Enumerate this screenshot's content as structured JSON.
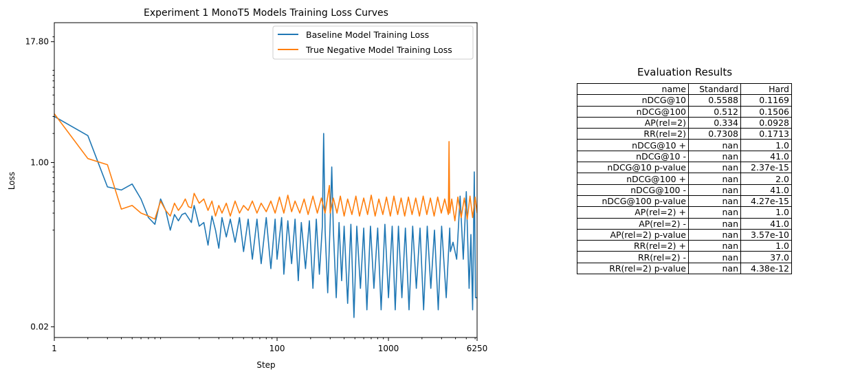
{
  "chart_data": {
    "type": "line",
    "title": "Experiment 1 MonoT5 Models Training Loss Curves",
    "xlabel": "Step",
    "ylabel": "Loss",
    "xscale": "log",
    "yscale": "log",
    "xlim": [
      1,
      6250
    ],
    "ylim": [
      0.0155,
      28
    ],
    "xticks": [
      1,
      100,
      1000,
      6250
    ],
    "xtick_labels": [
      "1",
      "100",
      "1000",
      "6250"
    ],
    "yticks": [
      0.02,
      1.0,
      17.8
    ],
    "ytick_labels": [
      "0.02",
      "1.00",
      "17.80"
    ],
    "grid": false,
    "legend_position": "top-right",
    "series": [
      {
        "name": "Baseline Model Training Loss",
        "color": "#1f77b4",
        "points": [
          [
            1,
            3.0
          ],
          [
            2,
            1.9
          ],
          [
            3,
            0.56
          ],
          [
            4,
            0.52
          ],
          [
            5,
            0.6
          ],
          [
            6,
            0.42
          ],
          [
            7,
            0.27
          ],
          [
            8,
            0.23
          ],
          [
            9,
            0.42
          ],
          [
            10,
            0.32
          ],
          [
            11,
            0.2
          ],
          [
            12,
            0.29
          ],
          [
            13,
            0.25
          ],
          [
            14,
            0.29
          ],
          [
            15,
            0.3
          ],
          [
            17,
            0.24
          ],
          [
            18,
            0.36
          ],
          [
            20,
            0.22
          ],
          [
            22,
            0.24
          ],
          [
            24,
            0.14
          ],
          [
            26,
            0.28
          ],
          [
            28,
            0.2
          ],
          [
            30,
            0.13
          ],
          [
            32,
            0.27
          ],
          [
            35,
            0.17
          ],
          [
            38,
            0.26
          ],
          [
            42,
            0.15
          ],
          [
            46,
            0.27
          ],
          [
            50,
            0.12
          ],
          [
            55,
            0.26
          ],
          [
            60,
            0.1
          ],
          [
            66,
            0.26
          ],
          [
            72,
            0.09
          ],
          [
            80,
            0.27
          ],
          [
            88,
            0.08
          ],
          [
            96,
            0.26
          ],
          [
            100,
            0.1
          ],
          [
            110,
            0.27
          ],
          [
            115,
            0.07
          ],
          [
            125,
            0.25
          ],
          [
            135,
            0.09
          ],
          [
            145,
            0.26
          ],
          [
            155,
            0.06
          ],
          [
            165,
            0.24
          ],
          [
            180,
            0.08
          ],
          [
            195,
            0.25
          ],
          [
            210,
            0.05
          ],
          [
            225,
            0.26
          ],
          [
            240,
            0.07
          ],
          [
            255,
            0.22
          ],
          [
            262,
            2.0
          ],
          [
            270,
            0.2
          ],
          [
            285,
            0.045
          ],
          [
            300,
            0.24
          ],
          [
            310,
            0.9
          ],
          [
            320,
            0.2
          ],
          [
            340,
            0.04
          ],
          [
            360,
            0.24
          ],
          [
            380,
            0.06
          ],
          [
            400,
            0.22
          ],
          [
            430,
            0.035
          ],
          [
            460,
            0.23
          ],
          [
            490,
            0.025
          ],
          [
            520,
            0.22
          ],
          [
            560,
            0.05
          ],
          [
            600,
            0.21
          ],
          [
            640,
            0.03
          ],
          [
            690,
            0.22
          ],
          [
            740,
            0.05
          ],
          [
            800,
            0.21
          ],
          [
            860,
            0.03
          ],
          [
            930,
            0.23
          ],
          [
            1000,
            0.04
          ],
          [
            1080,
            0.22
          ],
          [
            1150,
            0.03
          ],
          [
            1230,
            0.22
          ],
          [
            1320,
            0.04
          ],
          [
            1420,
            0.21
          ],
          [
            1530,
            0.03
          ],
          [
            1650,
            0.22
          ],
          [
            1780,
            0.05
          ],
          [
            1920,
            0.21
          ],
          [
            2070,
            0.03
          ],
          [
            2230,
            0.22
          ],
          [
            2400,
            0.05
          ],
          [
            2590,
            0.2
          ],
          [
            2800,
            0.03
          ],
          [
            3000,
            0.22
          ],
          [
            3300,
            0.04
          ],
          [
            3550,
            0.21
          ],
          [
            3600,
            0.12
          ],
          [
            3800,
            0.15
          ],
          [
            4100,
            0.1
          ],
          [
            4400,
            0.45
          ],
          [
            4700,
            0.1
          ],
          [
            5000,
            0.5
          ],
          [
            5300,
            0.05
          ],
          [
            5500,
            0.18
          ],
          [
            5700,
            0.03
          ],
          [
            5900,
            0.8
          ],
          [
            6050,
            0.04
          ],
          [
            6250,
            0.04
          ]
        ]
      },
      {
        "name": "True Negative Model Training Loss",
        "color": "#ff7f0e",
        "points": [
          [
            1,
            3.2
          ],
          [
            2,
            1.1
          ],
          [
            3,
            0.95
          ],
          [
            4,
            0.33
          ],
          [
            5,
            0.36
          ],
          [
            6,
            0.3
          ],
          [
            7,
            0.28
          ],
          [
            8,
            0.26
          ],
          [
            9,
            0.4
          ],
          [
            10,
            0.32
          ],
          [
            11,
            0.28
          ],
          [
            12,
            0.38
          ],
          [
            13,
            0.32
          ],
          [
            14,
            0.36
          ],
          [
            15,
            0.42
          ],
          [
            16,
            0.35
          ],
          [
            17,
            0.34
          ],
          [
            18,
            0.48
          ],
          [
            20,
            0.38
          ],
          [
            22,
            0.42
          ],
          [
            24,
            0.32
          ],
          [
            26,
            0.4
          ],
          [
            28,
            0.28
          ],
          [
            30,
            0.36
          ],
          [
            32,
            0.3
          ],
          [
            35,
            0.38
          ],
          [
            38,
            0.28
          ],
          [
            42,
            0.4
          ],
          [
            46,
            0.3
          ],
          [
            50,
            0.36
          ],
          [
            55,
            0.32
          ],
          [
            60,
            0.4
          ],
          [
            66,
            0.3
          ],
          [
            72,
            0.38
          ],
          [
            80,
            0.31
          ],
          [
            88,
            0.4
          ],
          [
            96,
            0.3
          ],
          [
            105,
            0.44
          ],
          [
            115,
            0.3
          ],
          [
            125,
            0.46
          ],
          [
            135,
            0.31
          ],
          [
            145,
            0.4
          ],
          [
            160,
            0.3
          ],
          [
            175,
            0.42
          ],
          [
            190,
            0.29
          ],
          [
            210,
            0.45
          ],
          [
            230,
            0.3
          ],
          [
            250,
            0.43
          ],
          [
            270,
            0.3
          ],
          [
            295,
            0.58
          ],
          [
            300,
            0.3
          ],
          [
            320,
            0.43
          ],
          [
            345,
            0.3
          ],
          [
            370,
            0.45
          ],
          [
            400,
            0.28
          ],
          [
            430,
            0.42
          ],
          [
            470,
            0.29
          ],
          [
            510,
            0.45
          ],
          [
            550,
            0.28
          ],
          [
            600,
            0.43
          ],
          [
            650,
            0.29
          ],
          [
            700,
            0.46
          ],
          [
            760,
            0.28
          ],
          [
            820,
            0.42
          ],
          [
            890,
            0.29
          ],
          [
            960,
            0.44
          ],
          [
            1040,
            0.28
          ],
          [
            1120,
            0.45
          ],
          [
            1210,
            0.29
          ],
          [
            1300,
            0.43
          ],
          [
            1400,
            0.28
          ],
          [
            1510,
            0.44
          ],
          [
            1630,
            0.29
          ],
          [
            1760,
            0.43
          ],
          [
            1900,
            0.28
          ],
          [
            2050,
            0.45
          ],
          [
            2210,
            0.29
          ],
          [
            2380,
            0.43
          ],
          [
            2570,
            0.28
          ],
          [
            2770,
            0.44
          ],
          [
            2980,
            0.3
          ],
          [
            3200,
            0.42
          ],
          [
            3450,
            0.29
          ],
          [
            3500,
            1.65
          ],
          [
            3550,
            0.3
          ],
          [
            3700,
            0.42
          ],
          [
            3950,
            0.25
          ],
          [
            4200,
            0.44
          ],
          [
            4500,
            0.27
          ],
          [
            4800,
            0.43
          ],
          [
            5100,
            0.26
          ],
          [
            5400,
            0.45
          ],
          [
            5700,
            0.27
          ],
          [
            6000,
            0.44
          ],
          [
            6250,
            0.3
          ]
        ]
      }
    ]
  },
  "results": {
    "title": "Evaluation Results",
    "header": [
      "name",
      "Standard",
      "Hard"
    ],
    "rows": [
      [
        "nDCG@10",
        "0.5588",
        "0.1169"
      ],
      [
        "nDCG@100",
        "0.512",
        "0.1506"
      ],
      [
        "AP(rel=2)",
        "0.334",
        "0.0928"
      ],
      [
        "RR(rel=2)",
        "0.7308",
        "0.1713"
      ],
      [
        "nDCG@10 +",
        "nan",
        "1.0"
      ],
      [
        "nDCG@10 -",
        "nan",
        "41.0"
      ],
      [
        "nDCG@10 p-value",
        "nan",
        "2.37e-15"
      ],
      [
        "nDCG@100 +",
        "nan",
        "2.0"
      ],
      [
        "nDCG@100 -",
        "nan",
        "41.0"
      ],
      [
        "nDCG@100 p-value",
        "nan",
        "4.27e-15"
      ],
      [
        "AP(rel=2) +",
        "nan",
        "1.0"
      ],
      [
        "AP(rel=2) -",
        "nan",
        "41.0"
      ],
      [
        "AP(rel=2) p-value",
        "nan",
        "3.57e-10"
      ],
      [
        "RR(rel=2) +",
        "nan",
        "1.0"
      ],
      [
        "RR(rel=2) -",
        "nan",
        "37.0"
      ],
      [
        "RR(rel=2) p-value",
        "nan",
        "4.38e-12"
      ]
    ]
  }
}
